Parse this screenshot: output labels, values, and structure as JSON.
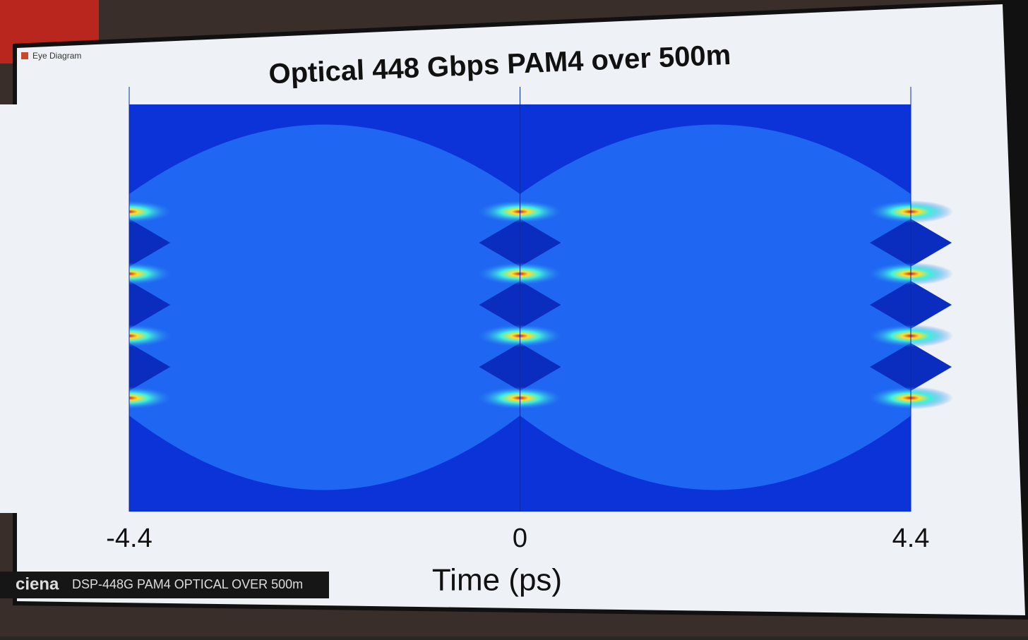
{
  "window_title": "Eye Diagram",
  "chart_data": {
    "type": "eye",
    "title": "Optical 448 Gbps PAM4 over 500m",
    "x_label": "Time (ps)",
    "xlim": [
      -4.4,
      4.4
    ],
    "xticks": [
      -4.4,
      0,
      4.4
    ]
  },
  "banner": {
    "logo": "ciena",
    "caption": "DSP-448G PAM4 OPTICAL OVER 500m"
  }
}
